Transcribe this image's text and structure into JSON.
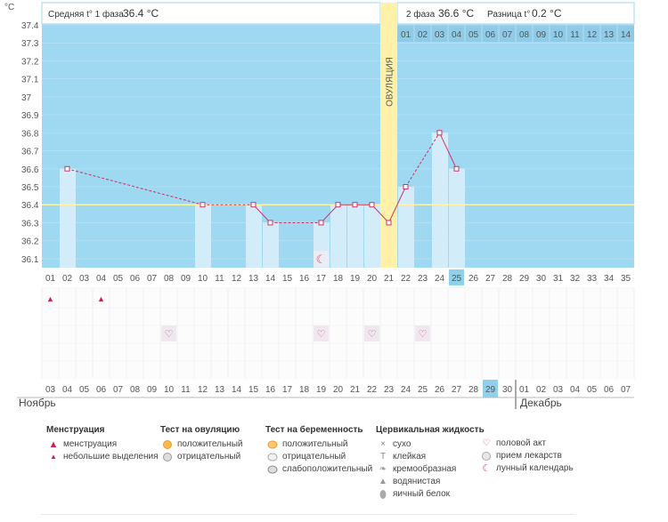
{
  "header": {
    "phase1_label": "Средняя t° 1 фаза",
    "phase1_value": "36.4 °C",
    "phase2_label": "2 фаза",
    "phase2_value": "36.6 °C",
    "diff_label": "Разница t°",
    "diff_value": "0.2 °C"
  },
  "unit": "°C",
  "ovulation_label": "ОВУЛЯЦИЯ",
  "month_left": "Ноябрь",
  "month_right": "Декабрь",
  "chart_data": {
    "type": "bar",
    "y_unit": "°C",
    "ylim": [
      36.1,
      37.4
    ],
    "yticks": [
      "36.1",
      "36.2",
      "36.3",
      "36.4",
      "36.5",
      "36.6",
      "36.7",
      "36.8",
      "36.9",
      "37",
      "37.1",
      "37.2",
      "37.3",
      "37.4"
    ],
    "coverline": 36.4,
    "ovulation_day": 21,
    "cycle_days": [
      "01",
      "02",
      "03",
      "04",
      "05",
      "06",
      "07",
      "08",
      "09",
      "10",
      "11",
      "12",
      "13",
      "14",
      "15",
      "16",
      "17",
      "18",
      "19",
      "20",
      "21",
      "22",
      "23",
      "24",
      "25",
      "26",
      "27",
      "28",
      "29",
      "30",
      "31",
      "32",
      "33",
      "34",
      "35"
    ],
    "phase2_days": [
      "01",
      "02",
      "03",
      "04",
      "05",
      "06",
      "07",
      "08",
      "09",
      "10",
      "11",
      "12",
      "13",
      "14"
    ],
    "current_day": 25,
    "points": [
      {
        "day": 2,
        "temp": 36.6
      },
      {
        "day": 10,
        "temp": 36.4
      },
      {
        "day": 13,
        "temp": 36.4
      },
      {
        "day": 14,
        "temp": 36.3
      },
      {
        "day": 17,
        "temp": 36.3
      },
      {
        "day": 18,
        "temp": 36.4
      },
      {
        "day": 19,
        "temp": 36.4
      },
      {
        "day": 20,
        "temp": 36.4
      },
      {
        "day": 21,
        "temp": 36.3
      },
      {
        "day": 22,
        "temp": 36.5
      },
      {
        "day": 24,
        "temp": 36.8
      },
      {
        "day": 25,
        "temp": 36.6
      }
    ],
    "calendar_dates": [
      "03",
      "04",
      "05",
      "06",
      "07",
      "08",
      "09",
      "10",
      "11",
      "12",
      "13",
      "14",
      "15",
      "16",
      "17",
      "18",
      "19",
      "20",
      "21",
      "22",
      "23",
      "24",
      "25",
      "26",
      "27",
      "28",
      "29",
      "30",
      "01",
      "02",
      "03",
      "04",
      "05",
      "06",
      "07"
    ],
    "red_date_cycle_days": [
      1,
      2,
      8,
      9,
      15,
      16,
      22,
      23,
      29,
      30
    ],
    "today_cycle_day": 25,
    "menstruation_days": [
      1,
      4
    ],
    "intercourse_days": [
      8,
      17,
      20,
      23
    ],
    "lunar_calendar_day": 17
  },
  "legend": {
    "menstruation": {
      "title": "Менструация",
      "items": [
        "менструация",
        "небольшие выделения"
      ]
    },
    "ovulation_test": {
      "title": "Тест на овуляцию",
      "items": [
        "положительный",
        "отрицательный"
      ]
    },
    "pregnancy_test": {
      "title": "Тест на беременность",
      "items": [
        "положительный",
        "отрицательный",
        "слабоположительный"
      ]
    },
    "cervical": {
      "title": "Цервикальная жидкость",
      "items": [
        "сухо",
        "клейкая",
        "кремообразная",
        "водянистая",
        "яичный белок"
      ]
    },
    "other": {
      "items": [
        "половой акт",
        "прием лекарств",
        "лунный календарь"
      ]
    }
  },
  "colors": {
    "plot_bg": "#9ed8f1",
    "bar": "#d2ecfa",
    "ovulation": "#fff1a8",
    "line": "#cc3366",
    "coverline": "#fff5a0",
    "red_text": "#d02050",
    "highlight": "#8fd0ea"
  }
}
